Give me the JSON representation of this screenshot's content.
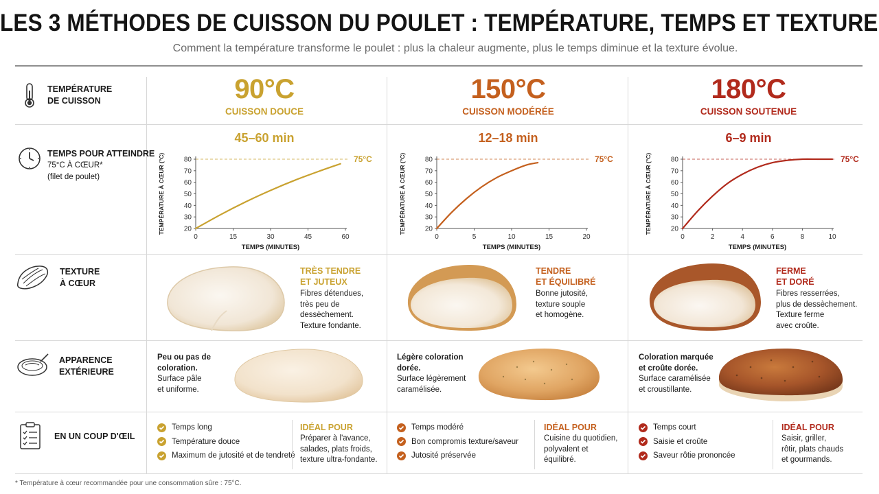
{
  "header": {
    "title": "LES 3 MÉTHODES DE CUISSON DU POULET : TEMPÉRATURE, TEMPS ET TEXTURE",
    "subtitle": "Comment la température transforme le poulet : plus la chaleur augmente, plus le temps diminue et la texture évolue."
  },
  "rows": {
    "temperature": {
      "line1": "TEMPÉRATURE",
      "line2": "DE CUISSON",
      "icon": "thermometer-icon"
    },
    "temps": {
      "line1": "TEMPS POUR ATTEINDRE",
      "line2": "75°C À CŒUR*",
      "line3": "(filet de poulet)",
      "icon": "clock-icon"
    },
    "texture": {
      "line1": "TEXTURE",
      "line2": "À CŒUR",
      "icon": "chicken-breast-icon"
    },
    "apparence": {
      "line1": "APPARENCE",
      "line2": "EXTÉRIEURE",
      "icon": "bowl-icon"
    },
    "coup": {
      "line1": "EN UN COUP D'ŒIL",
      "icon": "checklist-icon"
    }
  },
  "colors": {
    "douce": "#c9a230",
    "moderee": "#c4601e",
    "soutenue": "#b12a1c",
    "text": "#1a1a1a",
    "grid": "#d8d8d8"
  },
  "methods": [
    {
      "temp": "90°C",
      "label": "CUISSON DOUCE",
      "time": "45–60 min",
      "texture_title": [
        "TRÈS TENDRE",
        "ET JUTEUX"
      ],
      "texture_desc": [
        "Fibres détendues,",
        "très peu de",
        "dessèchement.",
        "Texture fondante."
      ],
      "appearance_bold": [
        "Peu ou pas de",
        "coloration."
      ],
      "appearance": [
        "Surface pâle",
        "et uniforme."
      ],
      "checks": [
        "Temps long",
        "Température douce",
        "Maximum de jutosité et de tendreté"
      ],
      "ideal_title": "IDÉAL POUR",
      "ideal": [
        "Préparer à l'avance,",
        "salades, plats froids,",
        "texture ultra-fondante."
      ]
    },
    {
      "temp": "150°C",
      "label": "CUISSON MODÉRÉE",
      "time": "12–18 min",
      "texture_title": [
        "TENDRE",
        "ET ÉQUILIBRÉ"
      ],
      "texture_desc": [
        "Bonne jutosité,",
        "texture souple",
        "et homogène."
      ],
      "appearance_bold": [
        "Légère coloration",
        "dorée."
      ],
      "appearance": [
        "Surface légèrement",
        "caramélisée."
      ],
      "checks": [
        "Temps modéré",
        "Bon compromis texture/saveur",
        "Jutosité préservée"
      ],
      "ideal_title": "IDÉAL POUR",
      "ideal": [
        "Cuisine du quotidien,",
        "polyvalent et",
        "équilibré."
      ]
    },
    {
      "temp": "180°C",
      "label": "CUISSON SOUTENUE",
      "time": "6–9 min",
      "texture_title": [
        "FERME",
        "ET DORÉ"
      ],
      "texture_desc": [
        "Fibres resserrées,",
        "plus de dessèchement.",
        "Texture ferme",
        "avec croûte."
      ],
      "appearance_bold": [
        "Coloration marquée",
        "et croûte dorée."
      ],
      "appearance": [
        "Surface caramélisée",
        "et croustillante."
      ],
      "checks": [
        "Temps court",
        "Saisie et croûte",
        "Saveur rôtie prononcée"
      ],
      "ideal_title": "IDÉAL POUR",
      "ideal": [
        "Saisir, griller,",
        "rôtir, plats chauds",
        "et gourmands."
      ]
    }
  ],
  "chart_data": [
    {
      "type": "line",
      "title": "45–60 min",
      "xlabel": "TEMPS (MINUTES)",
      "ylabel": "TEMPÉRATURE À CŒUR (°C)",
      "xlim": [
        0,
        60
      ],
      "ylim": [
        20,
        80
      ],
      "xticks": [
        0,
        15,
        30,
        45,
        60
      ],
      "yticks": [
        20,
        30,
        40,
        50,
        60,
        70,
        80
      ],
      "target": 75,
      "target_label": "75°C",
      "series": [
        {
          "x": [
            0,
            10,
            20,
            30,
            40,
            50,
            58
          ],
          "y": [
            20,
            32,
            43,
            53,
            62,
            70,
            76
          ]
        }
      ]
    },
    {
      "type": "line",
      "title": "12–18 min",
      "xlabel": "TEMPS (MINUTES)",
      "ylabel": "TEMPÉRATURE À CŒUR (°C)",
      "xlim": [
        0,
        20
      ],
      "ylim": [
        20,
        80
      ],
      "xticks": [
        0,
        5,
        10,
        15,
        20
      ],
      "yticks": [
        20,
        30,
        40,
        50,
        60,
        70,
        80
      ],
      "target": 75,
      "target_label": "75°C",
      "series": [
        {
          "x": [
            0,
            2,
            4,
            6,
            8,
            10,
            12,
            13.5
          ],
          "y": [
            20,
            34,
            46,
            56,
            64,
            70,
            75,
            77
          ]
        }
      ]
    },
    {
      "type": "line",
      "title": "6–9 min",
      "xlabel": "TEMPS (MINUTES)",
      "ylabel": "TEMPÉRATURE À CŒUR (°C)",
      "xlim": [
        0,
        10
      ],
      "ylim": [
        20,
        80
      ],
      "xticks": [
        0,
        2,
        4,
        6,
        8,
        10
      ],
      "yticks": [
        20,
        30,
        40,
        50,
        60,
        70,
        80
      ],
      "target": 75,
      "target_label": "75°C",
      "series": [
        {
          "x": [
            0,
            1,
            2,
            3,
            4,
            5,
            6,
            7,
            8,
            9,
            10
          ],
          "y": [
            20,
            35,
            48,
            59,
            67,
            73,
            77,
            79,
            80,
            80,
            80
          ]
        }
      ]
    }
  ],
  "footnote": "* Température à cœur recommandée pour une consommation sûre : 75°C."
}
